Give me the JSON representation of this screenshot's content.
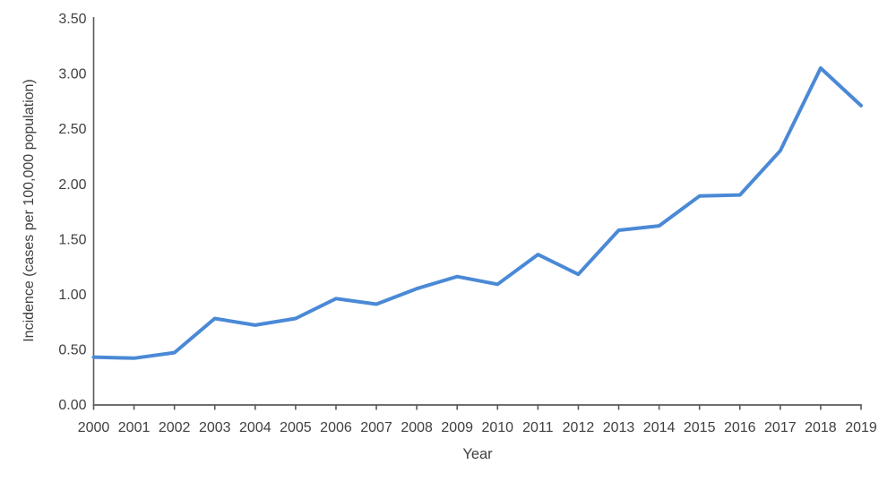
{
  "chart_data": {
    "type": "line",
    "title": "",
    "xlabel": "Year",
    "ylabel": "Incidence (cases per 100,000 population)",
    "categories": [
      "2000",
      "2001",
      "2002",
      "2003",
      "2004",
      "2005",
      "2006",
      "2007",
      "2008",
      "2009",
      "2010",
      "2011",
      "2012",
      "2013",
      "2014",
      "2015",
      "2016",
      "2017",
      "2018",
      "2019"
    ],
    "values": [
      0.43,
      0.42,
      0.47,
      0.78,
      0.72,
      0.78,
      0.96,
      0.91,
      1.05,
      1.16,
      1.09,
      1.36,
      1.18,
      1.58,
      1.62,
      1.89,
      1.9,
      2.3,
      3.05,
      2.71
    ],
    "ylim": [
      0,
      3.5
    ],
    "ytick_step": 0.5,
    "ytick_labels": [
      "0.00",
      "0.50",
      "1.00",
      "1.50",
      "2.00",
      "2.50",
      "3.00",
      "3.50"
    ],
    "grid": false,
    "legend": "none",
    "colors": {
      "line": "#4a89d6",
      "axis": "#595959",
      "text": "#404040"
    }
  }
}
